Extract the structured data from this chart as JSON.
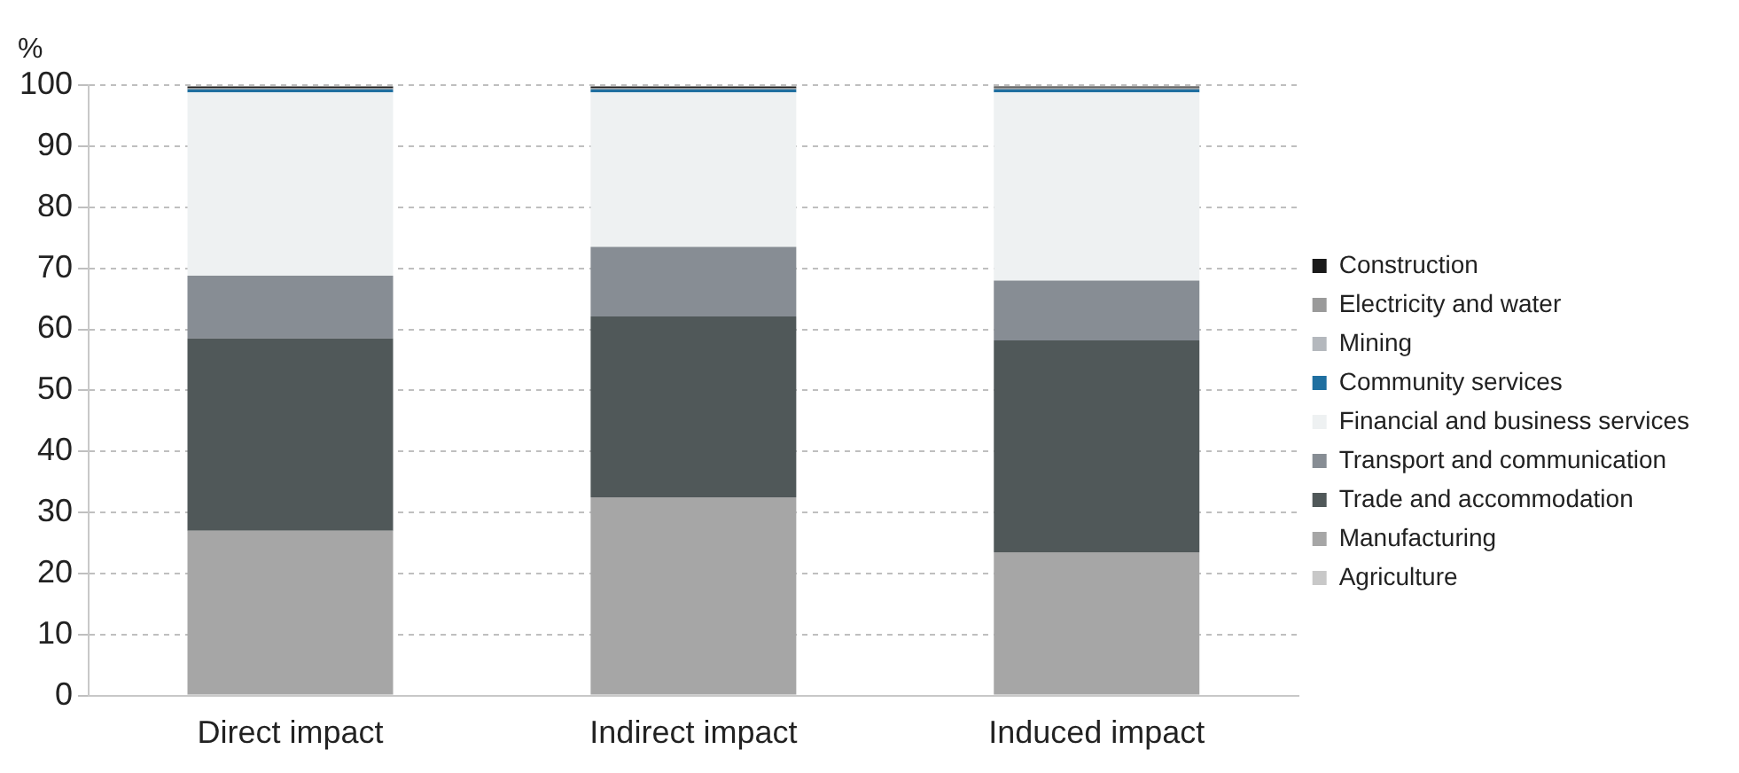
{
  "chart_data": {
    "type": "bar",
    "stacked": true,
    "ylabel": "%",
    "categories": [
      "Direct impact",
      "Indirect impact",
      "Induced impact"
    ],
    "series": [
      {
        "name": "Agriculture",
        "color": "#c8c8c8",
        "values": [
          0.2,
          0.2,
          0.2
        ]
      },
      {
        "name": "Manufacturing",
        "color": "#a6a6a6",
        "values": [
          26.8,
          32.3,
          23.3
        ]
      },
      {
        "name": "Trade and accommodation",
        "color": "#505859",
        "values": [
          31.5,
          29.6,
          34.7
        ]
      },
      {
        "name": "Transport and communication",
        "color": "#878d94",
        "values": [
          10.3,
          11.4,
          9.8
        ]
      },
      {
        "name": "Financial and business services",
        "color": "#eef1f2",
        "values": [
          30.0,
          25.3,
          30.8
        ]
      },
      {
        "name": "Community services",
        "color": "#1f6fa0",
        "values": [
          0.5,
          0.5,
          0.5
        ]
      },
      {
        "name": "Mining",
        "color": "#b4b8bd",
        "values": [
          null,
          null,
          null
        ]
      },
      {
        "name": "Electricity and water",
        "color": "#9a9a9a",
        "values": [
          0.2,
          0.2,
          0.3
        ]
      },
      {
        "name": "Construction",
        "color": "#1a1a1a",
        "values": [
          0.3,
          0.3,
          0.2
        ]
      }
    ],
    "ylim": [
      0,
      100
    ],
    "yticks": [
      0,
      10,
      20,
      30,
      40,
      50,
      60,
      70,
      80,
      90,
      100
    ],
    "grid": "y",
    "legend": "right"
  }
}
